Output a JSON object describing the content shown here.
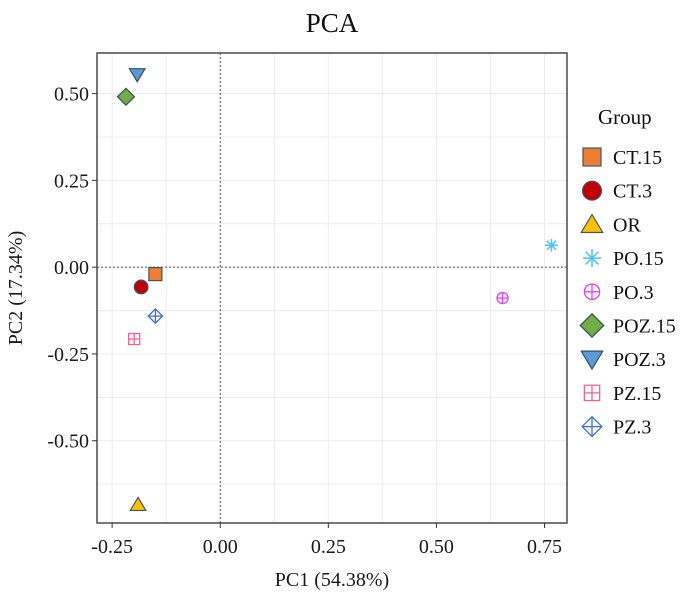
{
  "chart_data": {
    "type": "scatter",
    "title": "PCA",
    "xlabel": "PC1 (54.38%)",
    "ylabel": "PC2 (17.34%)",
    "xlim": [
      -0.285,
      0.802
    ],
    "ylim": [
      -0.737,
      0.617
    ],
    "xticks": [
      -0.25,
      0.0,
      0.25,
      0.5,
      0.75
    ],
    "xtick_labels": [
      "-0.25",
      "0.00",
      "0.25",
      "0.50",
      "0.75"
    ],
    "yticks": [
      -0.5,
      -0.25,
      0.0,
      0.25,
      0.5
    ],
    "ytick_labels": [
      "-0.50",
      "-0.25",
      "0.00",
      "0.25",
      "0.50"
    ],
    "grid": true,
    "reference_lines": {
      "x": 0,
      "y": 0,
      "style": "dotted"
    },
    "legend": {
      "title": "Group",
      "placement": "right"
    },
    "series": [
      {
        "name": "CT.15",
        "shape": "square",
        "fill": "#ED7D31",
        "stroke": "#44546A",
        "points": [
          [
            -0.15,
            -0.02
          ]
        ]
      },
      {
        "name": "CT.3",
        "shape": "circle",
        "fill": "#C00000",
        "stroke": "#44546A",
        "points": [
          [
            -0.183,
            -0.057
          ]
        ]
      },
      {
        "name": "OR",
        "shape": "triangle-up",
        "fill": "#FFC000",
        "stroke": "#44546A",
        "points": [
          [
            -0.19,
            -0.684
          ]
        ]
      },
      {
        "name": "PO.15",
        "shape": "asterisk",
        "fill": "none",
        "stroke": "#4FC3F7",
        "points": [
          [
            0.766,
            0.063
          ]
        ]
      },
      {
        "name": "PO.3",
        "shape": "circle-plus",
        "fill": "none",
        "stroke": "#E040FB",
        "points": [
          [
            0.653,
            -0.089
          ]
        ]
      },
      {
        "name": "POZ.15",
        "shape": "diamond",
        "fill": "#70AD47",
        "stroke": "#2F4F4F",
        "points": [
          [
            -0.218,
            0.491
          ]
        ]
      },
      {
        "name": "POZ.3",
        "shape": "triangle-down",
        "fill": "#5B9BD5",
        "stroke": "#2F4F6F",
        "points": [
          [
            -0.192,
            0.555
          ]
        ]
      },
      {
        "name": "PZ.15",
        "shape": "square-plus",
        "fill": "none",
        "stroke": "#F06292",
        "points": [
          [
            -0.199,
            -0.207
          ]
        ]
      },
      {
        "name": "PZ.3",
        "shape": "diamond-plus",
        "fill": "none",
        "stroke": "#3A6FD8",
        "points": [
          [
            -0.15,
            -0.141
          ]
        ]
      }
    ]
  }
}
